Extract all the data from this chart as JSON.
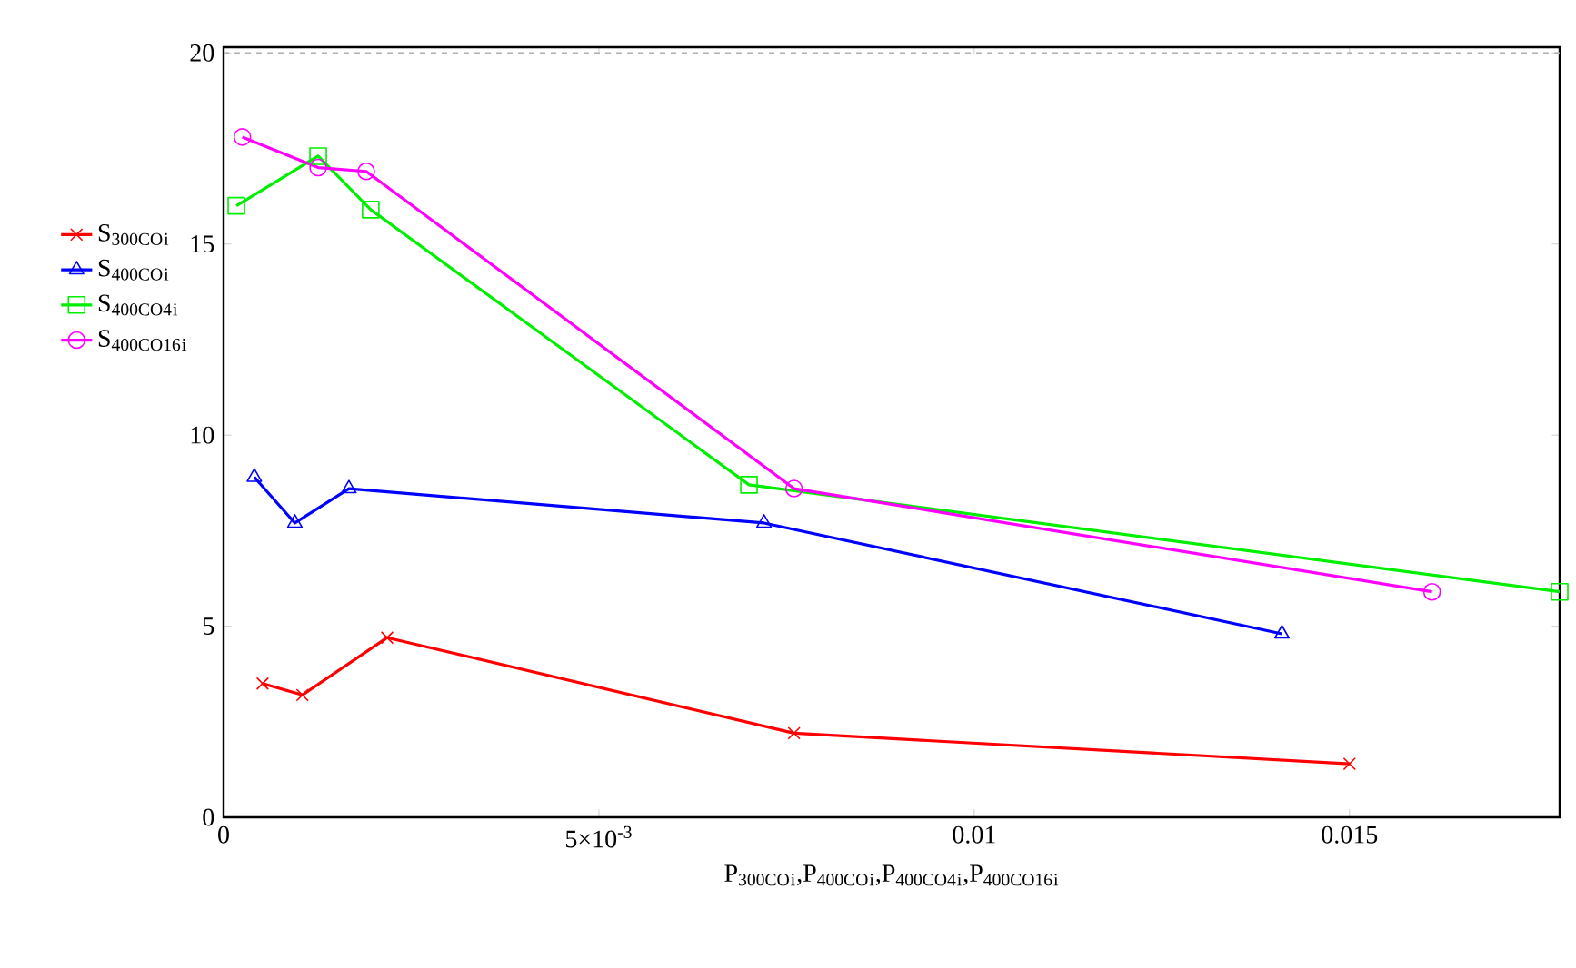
{
  "chart_data": {
    "type": "line",
    "xlabel": "P$_{300CO}$$_{i}$,P$_{400CO}$$_{i}$,P$_{400CO4}$$_{i}$,P$_{400CO16}$$_{i}$",
    "xlim": [
      0,
      0.0178
    ],
    "ylim": [
      0,
      20.15
    ],
    "xticks": [
      0,
      {
        "value": 0.005,
        "label": "5×10$^{-3}$"
      },
      0.01,
      0.015
    ],
    "yticks": [
      0,
      5,
      10,
      15,
      20
    ],
    "legend": "left",
    "grid": false,
    "line_style": "solid",
    "ref_lines": [
      {
        "axis": "y",
        "value": 20,
        "color": "#b0b0b0",
        "line_style": "dashed"
      }
    ],
    "series": [
      {
        "name": "S$_{300CO}$$_{i}$",
        "color": "#ff0000",
        "marker": "cross",
        "x": [
          0.00052,
          0.00105,
          0.00218,
          0.0076,
          0.015
        ],
        "values": [
          3.5,
          3.2,
          4.7,
          2.2,
          1.4
        ]
      },
      {
        "name": "S$_{400CO}$$_{i}$",
        "color": "#0000ff",
        "marker": "triangle",
        "x": [
          0.00041,
          0.00095,
          0.00167,
          0.0072,
          0.0141
        ],
        "values": [
          8.9,
          7.7,
          8.6,
          7.7,
          4.8
        ]
      },
      {
        "name": "S$_{400CO4}$$_{i}$",
        "color": "#00ee00",
        "marker": "square",
        "x": [
          0.00017,
          0.00126,
          0.00196,
          0.007,
          0.0178
        ],
        "values": [
          16.0,
          17.3,
          15.9,
          8.7,
          5.9
        ]
      },
      {
        "name": "S$_{400CO16}$$_{i}$",
        "color": "#ff00ff",
        "marker": "circle",
        "x": [
          0.00025,
          0.00126,
          0.0019,
          0.0076,
          0.0161
        ],
        "values": [
          17.8,
          17.0,
          16.9,
          8.6,
          5.9
        ]
      }
    ]
  }
}
